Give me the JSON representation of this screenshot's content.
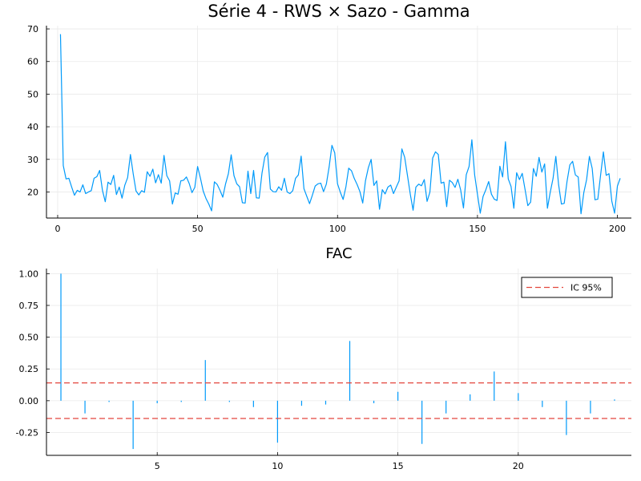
{
  "colors": {
    "series": "#009AFA",
    "ci": "#E3463D",
    "grid": "#e9e9e9",
    "axis": "#000000"
  },
  "chart_data": [
    {
      "type": "line",
      "title": "Série 4 - RWS × Sazo - Gamma",
      "xlabel": "",
      "ylabel": "",
      "xlim": [
        -4,
        205
      ],
      "ylim": [
        12,
        71
      ],
      "xticks": [
        0,
        50,
        100,
        150,
        200
      ],
      "yticks": [
        20,
        30,
        40,
        50,
        60,
        70
      ],
      "grid": true,
      "series": [
        {
          "name": "Série 4",
          "x_start": 1,
          "values": [
            68.4,
            28.1,
            24.0,
            24.2,
            21.5,
            19.0,
            20.5,
            20.0,
            22.2,
            19.5,
            20.0,
            20.4,
            24.2,
            24.7,
            26.6,
            20.5,
            17.0,
            23.0,
            22.3,
            25.1,
            19.2,
            21.5,
            18.1,
            22.1,
            24.4,
            31.5,
            25.5,
            20.3,
            19.1,
            20.4,
            19.9,
            26.2,
            24.8,
            27.0,
            22.8,
            25.3,
            22.7,
            31.2,
            25.0,
            23.4,
            16.3,
            19.7,
            19.3,
            23.4,
            23.6,
            24.6,
            22.6,
            19.8,
            21.4,
            27.8,
            24.3,
            20.3,
            18.0,
            16.3,
            14.2,
            23.1,
            22.3,
            20.5,
            18.4,
            22.5,
            25.6,
            31.4,
            25.0,
            22.5,
            21.6,
            16.7,
            16.6,
            26.4,
            19.5,
            26.6,
            18.2,
            18.1,
            25.7,
            30.7,
            32.1,
            20.9,
            20.1,
            20.0,
            21.6,
            20.5,
            24.2,
            20.0,
            19.5,
            20.4,
            24.2,
            25.2,
            31.0,
            21.0,
            18.7,
            16.4,
            19.0,
            21.8,
            22.5,
            22.7,
            20.1,
            22.4,
            27.7,
            34.3,
            32.0,
            22.5,
            19.9,
            17.7,
            21.6,
            27.3,
            26.5,
            24.1,
            22.3,
            20.1,
            16.6,
            23.5,
            27.4,
            30.0,
            22.0,
            23.4,
            14.7,
            20.7,
            19.4,
            21.5,
            22.1,
            19.5,
            21.5,
            23.4,
            33.2,
            30.6,
            25.0,
            19.3,
            14.4,
            21.5,
            22.4,
            21.9,
            23.8,
            17.1,
            19.9,
            30.4,
            32.3,
            31.5,
            22.7,
            23.0,
            15.5,
            23.6,
            22.9,
            21.4,
            23.9,
            20.6,
            15.1,
            25.3,
            27.8,
            36.0,
            25.2,
            19.3,
            13.5,
            18.6,
            20.7,
            23.2,
            19.3,
            17.8,
            17.4,
            27.9,
            24.6,
            35.4,
            24.0,
            21.7,
            15.0,
            25.9,
            23.8,
            25.7,
            20.8,
            15.8,
            16.9,
            27.2,
            24.8,
            30.6,
            26.1,
            28.6,
            15.0,
            19.9,
            24.1,
            30.9,
            22.2,
            16.3,
            16.5,
            23.2,
            28.3,
            29.4,
            25.2,
            24.6,
            13.3,
            19.8,
            23.8,
            30.9,
            27.2,
            17.6,
            17.8,
            25.2,
            32.3,
            25.1,
            25.6,
            17.2,
            13.5,
            21.8,
            24.2
          ]
        }
      ]
    },
    {
      "type": "bar",
      "title": "FAC",
      "xlabel": "",
      "ylabel": "",
      "xlim": [
        0.4,
        24.7
      ],
      "ylim": [
        -0.43,
        1.04
      ],
      "xticks": [
        5,
        10,
        15,
        20
      ],
      "yticks": [
        -0.25,
        0.0,
        0.25,
        0.5,
        0.75,
        1.0
      ],
      "ytick_labels": [
        "-0.25",
        "0.00",
        "0.25",
        "0.50",
        "0.75",
        "1.00"
      ],
      "grid": true,
      "legend": {
        "label": "IC 95%",
        "position": "top-right"
      },
      "ci": 0.14,
      "series": [
        {
          "name": "FAC",
          "lags": [
            1,
            2,
            3,
            4,
            5,
            6,
            7,
            8,
            9,
            10,
            11,
            12,
            13,
            14,
            15,
            16,
            17,
            18,
            19,
            20,
            21,
            22,
            23,
            24
          ],
          "values": [
            1.0,
            -0.1,
            -0.01,
            -0.38,
            -0.02,
            -0.01,
            0.32,
            -0.01,
            -0.05,
            -0.33,
            -0.04,
            -0.03,
            0.47,
            -0.02,
            0.07,
            -0.34,
            -0.1,
            0.05,
            0.23,
            0.06,
            -0.05,
            -0.27,
            -0.1,
            0.01
          ]
        }
      ]
    }
  ]
}
